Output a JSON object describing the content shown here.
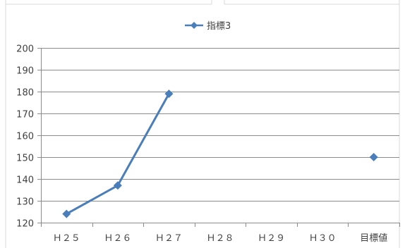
{
  "chart_data": {
    "type": "line",
    "categories": [
      "Ｈ２５",
      "Ｈ２６",
      "Ｈ２７",
      "Ｈ２８",
      "Ｈ２９",
      "Ｈ３０",
      "目標値"
    ],
    "series": [
      {
        "name": "指標3",
        "values": [
          124,
          137,
          179,
          null,
          null,
          null,
          null
        ],
        "color": "#4a7ebb",
        "marker": "diamond"
      }
    ],
    "target": {
      "category": "目標値",
      "value": 150,
      "color": "#4a7ebb",
      "marker": "diamond"
    },
    "ylim": [
      120,
      200
    ],
    "yticks": [
      120,
      130,
      140,
      150,
      160,
      170,
      180,
      190,
      200
    ],
    "grid": true,
    "legend": "top-center",
    "title": "",
    "xlabel": "",
    "ylabel": ""
  }
}
